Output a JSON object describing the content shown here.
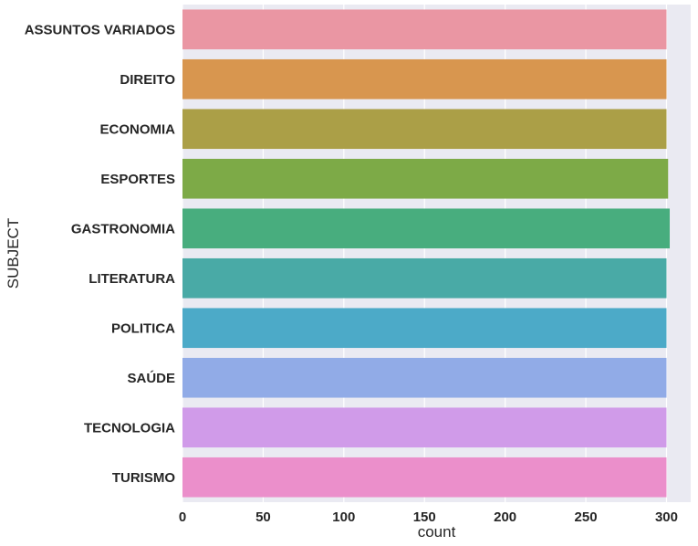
{
  "chart_data": {
    "type": "bar",
    "orientation": "horizontal",
    "xlabel": "count",
    "ylabel": "SUBJECT",
    "xlim": [
      0,
      315
    ],
    "xticks": [
      0,
      50,
      100,
      150,
      200,
      250,
      300
    ],
    "grid": true,
    "categories": [
      "ASSUNTOS VARIADOS",
      "DIREITO",
      "ECONOMIA",
      "ESPORTES",
      "GASTRONOMIA",
      "LITERATURA",
      "POLITICA",
      "SAÚDE",
      "TECNOLOGIA",
      "TURISMO"
    ],
    "values": [
      300,
      300,
      300,
      301,
      302,
      300,
      300,
      300,
      300,
      300
    ],
    "colors": [
      "#ea96a3",
      "#d8964f",
      "#ab9f47",
      "#7daa47",
      "#48ad7e",
      "#49aaa6",
      "#4caac8",
      "#91abe7",
      "#d09be9",
      "#eb8fcb"
    ],
    "background_color": "#eaeaf2"
  }
}
